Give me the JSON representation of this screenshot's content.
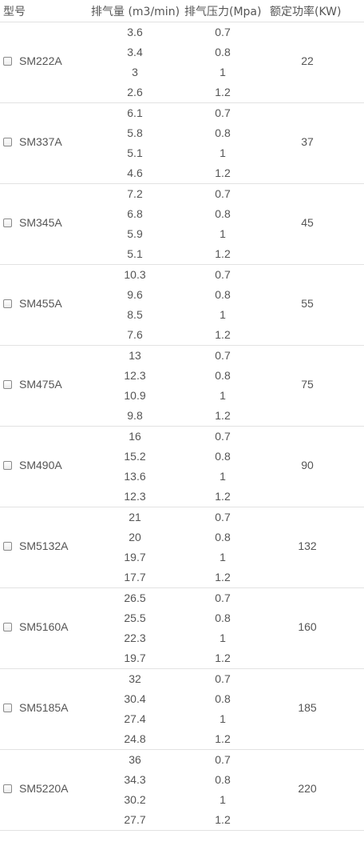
{
  "header": {
    "model": "型号",
    "displacement": "排气量 (m3/min)",
    "pressure": "排气压力(Mpa)",
    "power": "额定功率(KW)"
  },
  "rows": [
    {
      "model": "SM222A",
      "power": "22",
      "sub": [
        {
          "disp": "3.6",
          "press": "0.7"
        },
        {
          "disp": "3.4",
          "press": "0.8"
        },
        {
          "disp": "3",
          "press": "1"
        },
        {
          "disp": "2.6",
          "press": "1.2"
        }
      ]
    },
    {
      "model": "SM337A",
      "power": "37",
      "sub": [
        {
          "disp": "6.1",
          "press": "0.7"
        },
        {
          "disp": "5.8",
          "press": "0.8"
        },
        {
          "disp": "5.1",
          "press": "1"
        },
        {
          "disp": "4.6",
          "press": "1.2"
        }
      ]
    },
    {
      "model": "SM345A",
      "power": "45",
      "sub": [
        {
          "disp": "7.2",
          "press": "0.7"
        },
        {
          "disp": "6.8",
          "press": "0.8"
        },
        {
          "disp": "5.9",
          "press": "1"
        },
        {
          "disp": "5.1",
          "press": "1.2"
        }
      ]
    },
    {
      "model": "SM455A",
      "power": "55",
      "sub": [
        {
          "disp": "10.3",
          "press": "0.7"
        },
        {
          "disp": "9.6",
          "press": "0.8"
        },
        {
          "disp": "8.5",
          "press": "1"
        },
        {
          "disp": "7.6",
          "press": "1.2"
        }
      ]
    },
    {
      "model": "SM475A",
      "power": "75",
      "sub": [
        {
          "disp": "13",
          "press": "0.7"
        },
        {
          "disp": "12.3",
          "press": "0.8"
        },
        {
          "disp": "10.9",
          "press": "1"
        },
        {
          "disp": "9.8",
          "press": "1.2"
        }
      ]
    },
    {
      "model": "SM490A",
      "power": "90",
      "sub": [
        {
          "disp": "16",
          "press": "0.7"
        },
        {
          "disp": "15.2",
          "press": "0.8"
        },
        {
          "disp": "13.6",
          "press": "1"
        },
        {
          "disp": "12.3",
          "press": "1.2"
        }
      ]
    },
    {
      "model": "SM5132A",
      "power": "132",
      "sub": [
        {
          "disp": "21",
          "press": "0.7"
        },
        {
          "disp": "20",
          "press": "0.8"
        },
        {
          "disp": "19.7",
          "press": "1"
        },
        {
          "disp": "17.7",
          "press": "1.2"
        }
      ]
    },
    {
      "model": "SM5160A",
      "power": "160",
      "sub": [
        {
          "disp": "26.5",
          "press": "0.7"
        },
        {
          "disp": "25.5",
          "press": "0.8"
        },
        {
          "disp": "22.3",
          "press": "1"
        },
        {
          "disp": "19.7",
          "press": "1.2"
        }
      ]
    },
    {
      "model": "SM5185A",
      "power": "185",
      "sub": [
        {
          "disp": "32",
          "press": "0.7"
        },
        {
          "disp": "30.4",
          "press": "0.8"
        },
        {
          "disp": "27.4",
          "press": "1"
        },
        {
          "disp": "24.8",
          "press": "1.2"
        }
      ]
    },
    {
      "model": "SM5220A",
      "power": "220",
      "sub": [
        {
          "disp": "36",
          "press": "0.7"
        },
        {
          "disp": "34.3",
          "press": "0.8"
        },
        {
          "disp": "30.2",
          "press": "1"
        },
        {
          "disp": "27.7",
          "press": "1.2"
        }
      ]
    }
  ]
}
